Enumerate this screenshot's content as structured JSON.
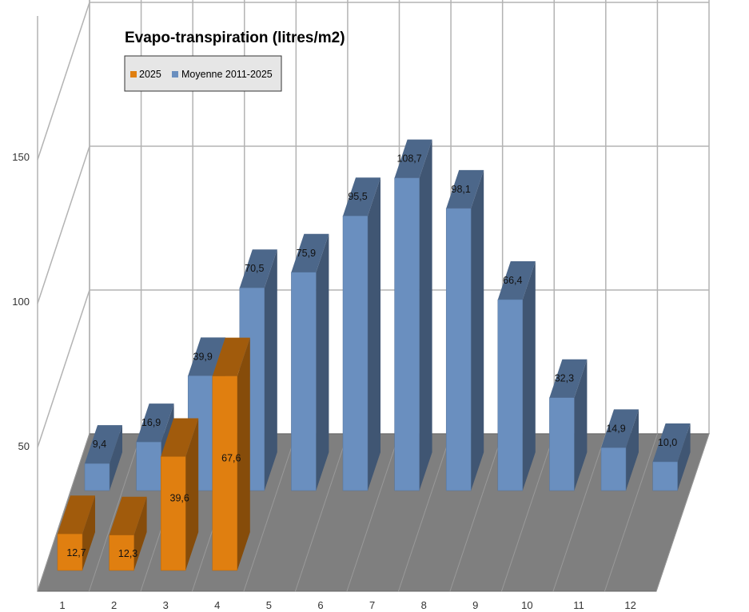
{
  "chart_data": {
    "type": "bar",
    "title": "Evapo-transpiration (litres/m2)",
    "categories": [
      "1",
      "2",
      "3",
      "4",
      "5",
      "6",
      "7",
      "8",
      "9",
      "10",
      "11",
      "12"
    ],
    "series": [
      {
        "name": "2025",
        "color": "#e07f10",
        "values": [
          12.7,
          12.3,
          39.6,
          67.6,
          null,
          null,
          null,
          null,
          null,
          null,
          null,
          null
        ],
        "labels": [
          "12,7",
          "12,3",
          "39,6",
          "67,6"
        ]
      },
      {
        "name": "Moyenne 2011-2025",
        "color": "#6a8fbf",
        "values": [
          9.4,
          16.9,
          39.9,
          70.5,
          75.9,
          95.5,
          108.7,
          98.1,
          66.4,
          32.3,
          14.9,
          10.0
        ],
        "labels": [
          "9,4",
          "16,9",
          "39,9",
          "70,5",
          "75,9",
          "95,5",
          "108,7",
          "98,1",
          "66,4",
          "32,3",
          "14,9",
          "10,0"
        ]
      }
    ],
    "yticks": [
      "50",
      "100",
      "150"
    ],
    "ylim": [
      0,
      150
    ],
    "grid": true,
    "legend_position": "top-left",
    "projection": "3d"
  }
}
